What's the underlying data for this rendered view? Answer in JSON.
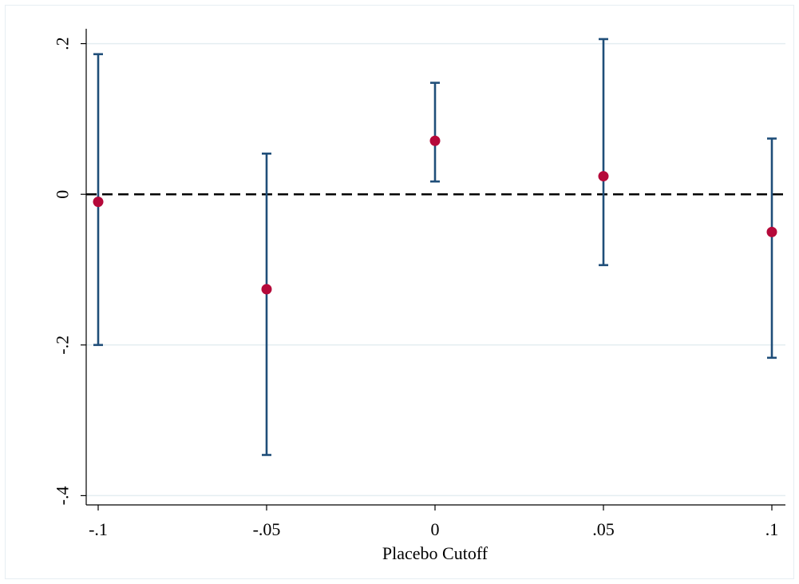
{
  "chart_data": {
    "type": "scatter",
    "title": "",
    "xlabel": "Placebo Cutoff",
    "ylabel": "",
    "x": [
      -0.1,
      -0.05,
      0,
      0.05,
      0.1
    ],
    "x_tick_values": [
      -0.1,
      -0.05,
      0,
      0.05,
      0.1
    ],
    "x_tick_labels": [
      "-.1",
      "-.05",
      "0",
      ".05",
      ".1"
    ],
    "y_tick_values": [
      -0.4,
      -0.2,
      0,
      0.2
    ],
    "y_tick_labels": [
      "-.4",
      "-.2",
      "0",
      ".2"
    ],
    "xlim": [
      -0.1,
      0.1
    ],
    "ylim": [
      -0.4,
      0.2
    ],
    "grid": "horizontal",
    "reference_line_y": 0,
    "series": [
      {
        "estimate": [
          -0.01,
          -0.126,
          0.071,
          0.024,
          -0.05
        ],
        "ci_upper": [
          0.186,
          0.054,
          0.148,
          0.206,
          0.074
        ],
        "ci_lower": [
          -0.2,
          -0.346,
          0.017,
          -0.094,
          -0.217
        ]
      }
    ],
    "colors": {
      "point": "#b5093a",
      "error_bar": "#1f4e79",
      "reference_line": "#000000",
      "grid": "#e4eef1",
      "axis": "#000000",
      "frame": "#e6eef2"
    }
  }
}
